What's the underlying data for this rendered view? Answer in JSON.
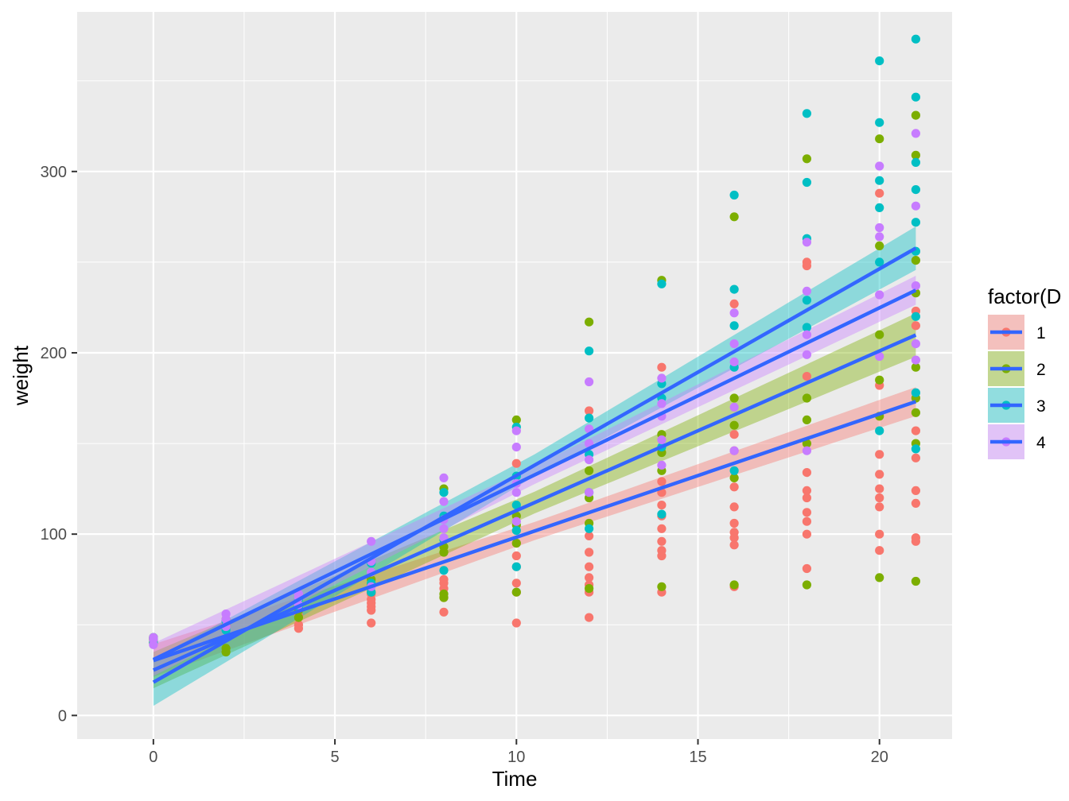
{
  "chart_data": {
    "type": "scatter",
    "xlabel": "Time",
    "ylabel": "weight",
    "xlim": [
      -2.1,
      22.0
    ],
    "ylim": [
      -13,
      388
    ],
    "x_ticks": [
      0,
      5,
      10,
      15,
      20
    ],
    "y_ticks": [
      0,
      100,
      200,
      300
    ],
    "grid": true,
    "legend": {
      "title": "factor(D",
      "position": "right"
    },
    "fit_line_color": "#3366FF",
    "series": [
      {
        "name": "1",
        "color": "#F8766D",
        "fit": {
          "intercept": 30.3,
          "slope": 6.8
        },
        "ci_halfwidth": [
          9,
          5,
          8
        ],
        "points": [
          [
            0,
            40
          ],
          [
            0,
            42
          ],
          [
            0,
            43
          ],
          [
            0,
            41
          ],
          [
            2,
            50
          ],
          [
            2,
            52
          ],
          [
            4,
            48
          ],
          [
            4,
            50
          ],
          [
            4,
            55
          ],
          [
            6,
            51
          ],
          [
            6,
            58
          ],
          [
            6,
            60
          ],
          [
            6,
            62
          ],
          [
            6,
            64
          ],
          [
            6,
            67
          ],
          [
            8,
            57
          ],
          [
            8,
            65
          ],
          [
            8,
            70
          ],
          [
            8,
            73
          ],
          [
            8,
            75
          ],
          [
            10,
            51
          ],
          [
            10,
            68
          ],
          [
            10,
            73
          ],
          [
            10,
            82
          ],
          [
            10,
            88
          ],
          [
            10,
            95
          ],
          [
            10,
            139
          ],
          [
            12,
            54
          ],
          [
            12,
            68
          ],
          [
            12,
            72
          ],
          [
            12,
            76
          ],
          [
            12,
            82
          ],
          [
            12,
            90
          ],
          [
            12,
            99
          ],
          [
            12,
            168
          ],
          [
            14,
            68
          ],
          [
            14,
            88
          ],
          [
            14,
            91
          ],
          [
            14,
            96
          ],
          [
            14,
            103
          ],
          [
            14,
            110
          ],
          [
            14,
            116
          ],
          [
            14,
            123
          ],
          [
            14,
            129
          ],
          [
            14,
            192
          ],
          [
            16,
            71
          ],
          [
            16,
            94
          ],
          [
            16,
            98
          ],
          [
            16,
            101
          ],
          [
            16,
            106
          ],
          [
            16,
            115
          ],
          [
            16,
            126
          ],
          [
            16,
            146
          ],
          [
            16,
            155
          ],
          [
            16,
            227
          ],
          [
            18,
            81
          ],
          [
            18,
            100
          ],
          [
            18,
            107
          ],
          [
            18,
            112
          ],
          [
            18,
            120
          ],
          [
            18,
            124
          ],
          [
            18,
            134
          ],
          [
            18,
            187
          ],
          [
            18,
            248
          ],
          [
            18,
            250
          ],
          [
            20,
            91
          ],
          [
            20,
            100
          ],
          [
            20,
            115
          ],
          [
            20,
            120
          ],
          [
            20,
            125
          ],
          [
            20,
            133
          ],
          [
            20,
            144
          ],
          [
            20,
            182
          ],
          [
            20,
            288
          ],
          [
            21,
            96
          ],
          [
            21,
            98
          ],
          [
            21,
            117
          ],
          [
            21,
            124
          ],
          [
            21,
            142
          ],
          [
            21,
            157
          ],
          [
            21,
            215
          ],
          [
            21,
            223
          ]
        ]
      },
      {
        "name": "2",
        "color": "#7CAE00",
        "fit": {
          "intercept": 25.0,
          "slope": 8.8
        },
        "ci_halfwidth": [
          10,
          6,
          12
        ],
        "points": [
          [
            0,
            40
          ],
          [
            0,
            42
          ],
          [
            0,
            43
          ],
          [
            2,
            35
          ],
          [
            2,
            37
          ],
          [
            2,
            49
          ],
          [
            2,
            53
          ],
          [
            4,
            54
          ],
          [
            4,
            58
          ],
          [
            4,
            60
          ],
          [
            6,
            68
          ],
          [
            6,
            72
          ],
          [
            6,
            75
          ],
          [
            8,
            65
          ],
          [
            8,
            67
          ],
          [
            8,
            90
          ],
          [
            8,
            93
          ],
          [
            8,
            125
          ],
          [
            10,
            68
          ],
          [
            10,
            95
          ],
          [
            10,
            105
          ],
          [
            10,
            110
          ],
          [
            10,
            163
          ],
          [
            12,
            70
          ],
          [
            12,
            106
          ],
          [
            12,
            120
          ],
          [
            12,
            135
          ],
          [
            12,
            217
          ],
          [
            14,
            71
          ],
          [
            14,
            135
          ],
          [
            14,
            145
          ],
          [
            14,
            155
          ],
          [
            14,
            240
          ],
          [
            16,
            72
          ],
          [
            16,
            131
          ],
          [
            16,
            160
          ],
          [
            16,
            175
          ],
          [
            16,
            275
          ],
          [
            18,
            72
          ],
          [
            18,
            150
          ],
          [
            18,
            163
          ],
          [
            18,
            175
          ],
          [
            18,
            307
          ],
          [
            20,
            76
          ],
          [
            20,
            165
          ],
          [
            20,
            185
          ],
          [
            20,
            210
          ],
          [
            20,
            259
          ],
          [
            20,
            318
          ],
          [
            21,
            74
          ],
          [
            21,
            150
          ],
          [
            21,
            167
          ],
          [
            21,
            175
          ],
          [
            21,
            192
          ],
          [
            21,
            233
          ],
          [
            21,
            251
          ],
          [
            21,
            309
          ],
          [
            21,
            331
          ]
        ]
      },
      {
        "name": "3",
        "color": "#00BFC4",
        "fit": {
          "intercept": 18.3,
          "slope": 11.4
        },
        "ci_halfwidth": [
          13,
          6,
          12
        ],
        "points": [
          [
            0,
            40
          ],
          [
            0,
            42
          ],
          [
            0,
            43
          ],
          [
            2,
            47
          ],
          [
            2,
            52
          ],
          [
            4,
            60
          ],
          [
            4,
            64
          ],
          [
            6,
            68
          ],
          [
            6,
            73
          ],
          [
            6,
            84
          ],
          [
            8,
            80
          ],
          [
            8,
            97
          ],
          [
            8,
            110
          ],
          [
            8,
            123
          ],
          [
            10,
            82
          ],
          [
            10,
            102
          ],
          [
            10,
            116
          ],
          [
            10,
            132
          ],
          [
            10,
            159
          ],
          [
            12,
            103
          ],
          [
            12,
            123
          ],
          [
            12,
            144
          ],
          [
            12,
            164
          ],
          [
            12,
            201
          ],
          [
            14,
            111
          ],
          [
            14,
            148
          ],
          [
            14,
            175
          ],
          [
            14,
            183
          ],
          [
            14,
            238
          ],
          [
            16,
            135
          ],
          [
            16,
            192
          ],
          [
            16,
            215
          ],
          [
            16,
            235
          ],
          [
            16,
            287
          ],
          [
            18,
            214
          ],
          [
            18,
            229
          ],
          [
            18,
            263
          ],
          [
            18,
            294
          ],
          [
            18,
            332
          ],
          [
            20,
            157
          ],
          [
            20,
            250
          ],
          [
            20,
            280
          ],
          [
            20,
            295
          ],
          [
            20,
            327
          ],
          [
            20,
            361
          ],
          [
            21,
            147
          ],
          [
            21,
            178
          ],
          [
            21,
            220
          ],
          [
            21,
            256
          ],
          [
            21,
            272
          ],
          [
            21,
            290
          ],
          [
            21,
            305
          ],
          [
            21,
            341
          ],
          [
            21,
            373
          ]
        ]
      },
      {
        "name": "4",
        "color": "#C77CFF",
        "fit": {
          "intercept": 30.8,
          "slope": 9.7
        },
        "ci_halfwidth": [
          9,
          5,
          8
        ],
        "points": [
          [
            0,
            39
          ],
          [
            0,
            42
          ],
          [
            0,
            43
          ],
          [
            2,
            49
          ],
          [
            2,
            53
          ],
          [
            2,
            56
          ],
          [
            4,
            61
          ],
          [
            4,
            65
          ],
          [
            4,
            67
          ],
          [
            6,
            71
          ],
          [
            6,
            79
          ],
          [
            6,
            85
          ],
          [
            6,
            96
          ],
          [
            8,
            98
          ],
          [
            8,
            103
          ],
          [
            8,
            108
          ],
          [
            8,
            118
          ],
          [
            8,
            131
          ],
          [
            10,
            107
          ],
          [
            10,
            123
          ],
          [
            10,
            128
          ],
          [
            10,
            148
          ],
          [
            10,
            157
          ],
          [
            12,
            123
          ],
          [
            12,
            141
          ],
          [
            12,
            150
          ],
          [
            12,
            158
          ],
          [
            12,
            184
          ],
          [
            14,
            138
          ],
          [
            14,
            152
          ],
          [
            14,
            165
          ],
          [
            14,
            172
          ],
          [
            14,
            186
          ],
          [
            16,
            146
          ],
          [
            16,
            170
          ],
          [
            16,
            195
          ],
          [
            16,
            205
          ],
          [
            16,
            222
          ],
          [
            18,
            146
          ],
          [
            18,
            199
          ],
          [
            18,
            210
          ],
          [
            18,
            234
          ],
          [
            18,
            261
          ],
          [
            20,
            198
          ],
          [
            20,
            232
          ],
          [
            20,
            264
          ],
          [
            20,
            269
          ],
          [
            20,
            303
          ],
          [
            21,
            196
          ],
          [
            21,
            205
          ],
          [
            21,
            237
          ],
          [
            21,
            281
          ],
          [
            21,
            321
          ]
        ]
      }
    ]
  }
}
